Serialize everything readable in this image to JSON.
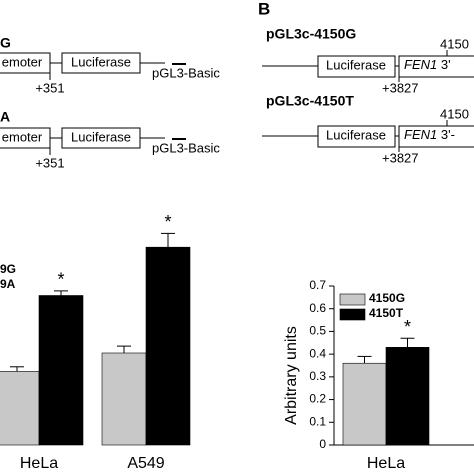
{
  "panel_label": "B",
  "constructs_left": [
    {
      "name": "G",
      "promoter": "emoter",
      "reporter": "Luciferase",
      "position": "+351",
      "vector": "pGL3-Basic"
    },
    {
      "name": "A",
      "promoter": "emoter",
      "reporter": "Luciferase",
      "position": "+351",
      "vector": "pGL3-Basic"
    }
  ],
  "constructs_right": [
    {
      "name": "pGL3c-4150G",
      "reporter": "Luciferase",
      "gene": "FEN1",
      "region": "3'",
      "site": "4150",
      "position": "+3827"
    },
    {
      "name": "pGL3c-4150T",
      "reporter": "Luciferase",
      "gene": "FEN1",
      "region": "3'-",
      "site": "4150",
      "position": "+3827"
    }
  ],
  "chart_data": [
    {
      "type": "bar",
      "categories": [
        "HeLa",
        "A549"
      ],
      "series": [
        {
          "name": "9G",
          "color": "#c8c8c8",
          "values": [
            0.32,
            0.4
          ],
          "errors": [
            0.02,
            0.03
          ]
        },
        {
          "name": "9A",
          "color": "#000000",
          "values": [
            0.65,
            0.86
          ],
          "errors": [
            0.02,
            0.06
          ]
        }
      ],
      "annotations": [
        "*",
        "*"
      ],
      "ylim": [
        0,
        1
      ]
    },
    {
      "type": "bar",
      "y_label": "Arbitrary units",
      "categories": [
        "HeLa"
      ],
      "series": [
        {
          "name": "4150G",
          "color": "#c8c8c8",
          "values": [
            0.36
          ],
          "errors": [
            0.03
          ]
        },
        {
          "name": "4150T",
          "color": "#000000",
          "values": [
            0.43
          ],
          "errors": [
            0.04
          ]
        }
      ],
      "annotations": [
        "*"
      ],
      "ylim": [
        0,
        0.7
      ],
      "yticks": [
        0,
        0.1,
        0.2,
        0.3,
        0.4,
        0.5,
        0.6,
        0.7
      ]
    }
  ]
}
